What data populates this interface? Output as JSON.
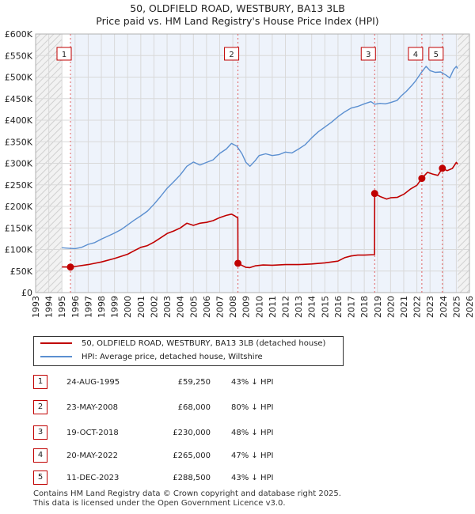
{
  "chart_data": {
    "type": "line",
    "title": "50, OLDFIELD ROAD, WESTBURY, BA13 3LB",
    "subtitle": "Price paid vs. HM Land Registry's House Price Index (HPI)",
    "xlabel": "",
    "ylabel": "",
    "xlim": [
      1993,
      2026
    ],
    "ylim": [
      0,
      600000
    ],
    "y_ticks": [
      {
        "value": 0,
        "label": "£0"
      },
      {
        "value": 50000,
        "label": "£50K"
      },
      {
        "value": 100000,
        "label": "£100K"
      },
      {
        "value": 150000,
        "label": "£150K"
      },
      {
        "value": 200000,
        "label": "£200K"
      },
      {
        "value": 250000,
        "label": "£250K"
      },
      {
        "value": 300000,
        "label": "£300K"
      },
      {
        "value": 350000,
        "label": "£350K"
      },
      {
        "value": 400000,
        "label": "£400K"
      },
      {
        "value": 450000,
        "label": "£450K"
      },
      {
        "value": 500000,
        "label": "£500K"
      },
      {
        "value": 550000,
        "label": "£550K"
      },
      {
        "value": 600000,
        "label": "£600K"
      }
    ],
    "x_ticks": [
      "1993",
      "1994",
      "1995",
      "1996",
      "1997",
      "1998",
      "1999",
      "2000",
      "2001",
      "2002",
      "2003",
      "2004",
      "2005",
      "2006",
      "2007",
      "2008",
      "2009",
      "2010",
      "2011",
      "2012",
      "2013",
      "2014",
      "2015",
      "2016",
      "2017",
      "2018",
      "2019",
      "2020",
      "2021",
      "2022",
      "2023",
      "2024",
      "2025",
      "2026"
    ],
    "grid": true,
    "data_start": 1995.0,
    "data_end": 2025.1,
    "series": [
      {
        "name": "50, OLDFIELD ROAD, WESTBURY, BA13 3LB (detached house)",
        "color": "#c00000",
        "points": [
          [
            1995.0,
            59500
          ],
          [
            1995.65,
            59250
          ],
          [
            1996.0,
            60500
          ],
          [
            1997.0,
            65000
          ],
          [
            1998.0,
            71000
          ],
          [
            1999.0,
            79000
          ],
          [
            2000.0,
            89000
          ],
          [
            2000.5,
            97000
          ],
          [
            2001.0,
            105000
          ],
          [
            2001.5,
            109000
          ],
          [
            2002.0,
            117000
          ],
          [
            2002.5,
            127000
          ],
          [
            2003.0,
            137000
          ],
          [
            2003.5,
            143000
          ],
          [
            2004.0,
            150000
          ],
          [
            2004.5,
            161000
          ],
          [
            2005.0,
            156000
          ],
          [
            2005.5,
            161000
          ],
          [
            2006.0,
            163000
          ],
          [
            2006.5,
            167000
          ],
          [
            2007.0,
            174000
          ],
          [
            2007.5,
            179000
          ],
          [
            2007.9,
            182000
          ],
          [
            2008.15,
            178000
          ],
          [
            2008.38,
            173000
          ],
          [
            2008.39,
            68000
          ],
          [
            2008.7,
            63000
          ],
          [
            2009.0,
            58500
          ],
          [
            2009.3,
            58000
          ],
          [
            2009.7,
            62000
          ],
          [
            2010.3,
            64000
          ],
          [
            2011.0,
            63500
          ],
          [
            2012.0,
            65000
          ],
          [
            2013.0,
            65000
          ],
          [
            2014.0,
            66500
          ],
          [
            2015.0,
            69000
          ],
          [
            2016.0,
            73000
          ],
          [
            2016.5,
            81000
          ],
          [
            2017.0,
            85000
          ],
          [
            2017.5,
            87000
          ],
          [
            2018.0,
            87000
          ],
          [
            2018.78,
            88000
          ],
          [
            2018.79,
            230000
          ],
          [
            2019.2,
            223000
          ],
          [
            2019.7,
            217000
          ],
          [
            2020.0,
            220000
          ],
          [
            2020.5,
            221000
          ],
          [
            2021.0,
            228000
          ],
          [
            2021.5,
            240000
          ],
          [
            2022.0,
            249000
          ],
          [
            2022.38,
            265000
          ],
          [
            2022.8,
            279000
          ],
          [
            2023.2,
            275000
          ],
          [
            2023.6,
            272000
          ],
          [
            2023.94,
            288500
          ],
          [
            2024.3,
            283000
          ],
          [
            2024.7,
            288000
          ],
          [
            2025.0,
            302000
          ],
          [
            2025.1,
            298000
          ]
        ]
      },
      {
        "name": "HPI: Average price, detached house, Wiltshire",
        "color": "#5b8fd0",
        "points": [
          [
            1995.0,
            104000
          ],
          [
            1995.5,
            103000
          ],
          [
            1996.0,
            102000
          ],
          [
            1996.5,
            105000
          ],
          [
            1997.0,
            112000
          ],
          [
            1997.5,
            116000
          ],
          [
            1998.0,
            124000
          ],
          [
            1998.5,
            131000
          ],
          [
            1999.0,
            138000
          ],
          [
            1999.5,
            146000
          ],
          [
            2000.0,
            157000
          ],
          [
            2000.5,
            168000
          ],
          [
            2001.0,
            178000
          ],
          [
            2001.5,
            189000
          ],
          [
            2002.0,
            205000
          ],
          [
            2002.5,
            223000
          ],
          [
            2003.0,
            242000
          ],
          [
            2003.5,
            257000
          ],
          [
            2004.0,
            273000
          ],
          [
            2004.5,
            293000
          ],
          [
            2005.0,
            303000
          ],
          [
            2005.5,
            296000
          ],
          [
            2006.0,
            302000
          ],
          [
            2006.5,
            308000
          ],
          [
            2007.0,
            323000
          ],
          [
            2007.5,
            333000
          ],
          [
            2007.9,
            346000
          ],
          [
            2008.3,
            340000
          ],
          [
            2008.7,
            322000
          ],
          [
            2009.0,
            302000
          ],
          [
            2009.3,
            293000
          ],
          [
            2009.7,
            306000
          ],
          [
            2010.0,
            318000
          ],
          [
            2010.5,
            322000
          ],
          [
            2011.0,
            318000
          ],
          [
            2011.5,
            320000
          ],
          [
            2012.0,
            326000
          ],
          [
            2012.5,
            324000
          ],
          [
            2013.0,
            333000
          ],
          [
            2013.5,
            343000
          ],
          [
            2014.0,
            359000
          ],
          [
            2014.5,
            373000
          ],
          [
            2015.0,
            384000
          ],
          [
            2015.5,
            395000
          ],
          [
            2016.0,
            408000
          ],
          [
            2016.5,
            419000
          ],
          [
            2017.0,
            428000
          ],
          [
            2017.5,
            432000
          ],
          [
            2018.0,
            438000
          ],
          [
            2018.5,
            443000
          ],
          [
            2018.8,
            437000
          ],
          [
            2019.2,
            439000
          ],
          [
            2019.6,
            438000
          ],
          [
            2020.0,
            441000
          ],
          [
            2020.5,
            446000
          ],
          [
            2020.8,
            456000
          ],
          [
            2021.2,
            467000
          ],
          [
            2021.6,
            480000
          ],
          [
            2021.9,
            491000
          ],
          [
            2022.3,
            509000
          ],
          [
            2022.7,
            525000
          ],
          [
            2023.0,
            515000
          ],
          [
            2023.4,
            511000
          ],
          [
            2023.8,
            512000
          ],
          [
            2024.2,
            505000
          ],
          [
            2024.5,
            498000
          ],
          [
            2024.8,
            518000
          ],
          [
            2025.0,
            525000
          ],
          [
            2025.1,
            520000
          ]
        ]
      }
    ],
    "transactions": [
      {
        "num": "1",
        "date": "24-AUG-1995",
        "price": "£59,250",
        "hpi": "43% ↓ HPI",
        "year": 1995.65,
        "value": 59250
      },
      {
        "num": "2",
        "date": "23-MAY-2008",
        "price": "£68,000",
        "hpi": "80% ↓ HPI",
        "year": 2008.39,
        "value": 68000
      },
      {
        "num": "3",
        "date": "19-OCT-2018",
        "price": "£230,000",
        "hpi": "48% ↓ HPI",
        "year": 2018.79,
        "value": 230000
      },
      {
        "num": "4",
        "date": "20-MAY-2022",
        "price": "£265,000",
        "hpi": "47% ↓ HPI",
        "year": 2022.38,
        "value": 265000
      },
      {
        "num": "5",
        "date": "11-DEC-2023",
        "price": "£288,500",
        "hpi": "43% ↓ HPI",
        "year": 2023.94,
        "value": 288500
      }
    ],
    "legend": {
      "placement": "below-chart",
      "items": [
        {
          "label": "50, OLDFIELD ROAD, WESTBURY, BA13 3LB (detached house)",
          "color": "#c00000"
        },
        {
          "label": "HPI: Average price, detached house, Wiltshire",
          "color": "#5b8fd0"
        }
      ]
    }
  },
  "footer": {
    "line1": "Contains HM Land Registry data © Crown copyright and database right 2025.",
    "line2": "This data is licensed under the Open Government Licence v3.0."
  }
}
